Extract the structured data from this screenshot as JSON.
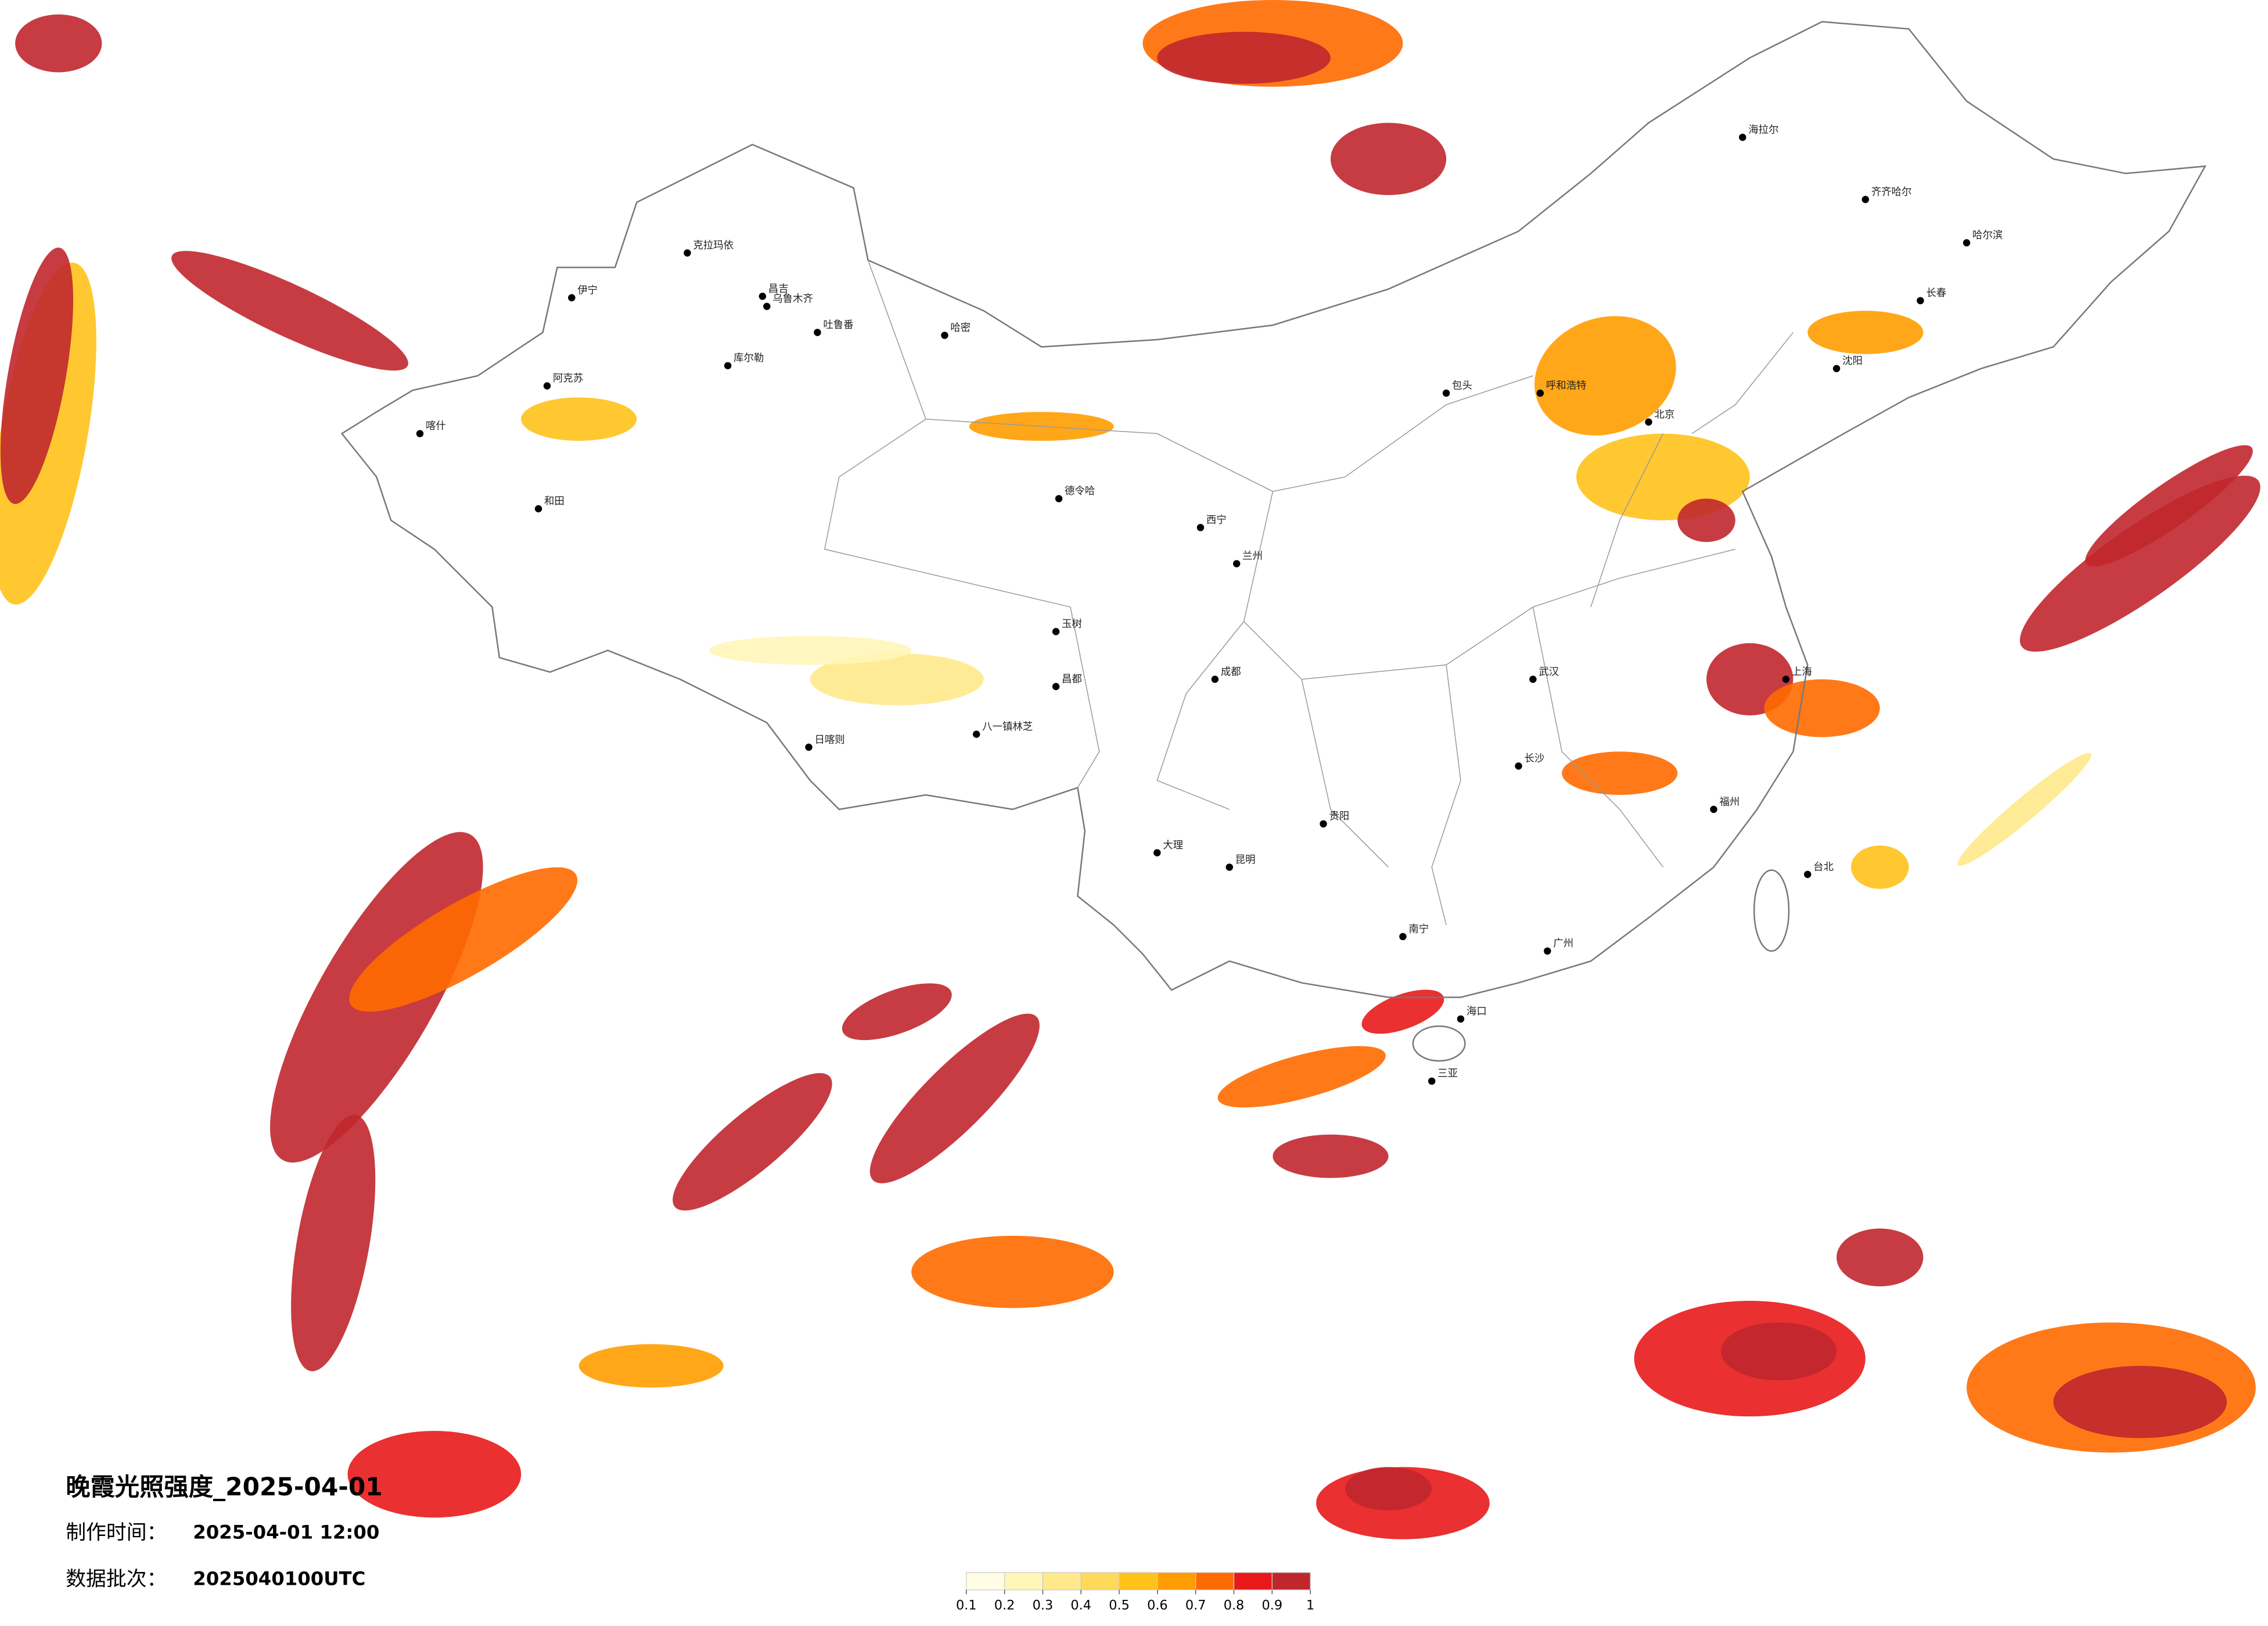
{
  "title": "晚霞光照强度_2025-04-01",
  "info": [
    {
      "label": "制作时间：",
      "value": "2025-04-01 12:00"
    },
    {
      "label": "数据批次：",
      "value": "2025040100UTC"
    }
  ],
  "colorbar": {
    "ticks": [
      0.1,
      0.2,
      0.3,
      0.4,
      0.5,
      0.6,
      0.7,
      0.8,
      0.9,
      1
    ],
    "colors": [
      "#fffde3",
      "#fff6b8",
      "#ffe98a",
      "#ffd95a",
      "#ffc21a",
      "#ff9d00",
      "#ff6a00",
      "#e8191b",
      "#c0272d"
    ]
  },
  "cities": [
    "克拉玛依",
    "昌吉",
    "乌鲁木齐",
    "吐鲁番",
    "哈密",
    "库尔勒",
    "阿克苏",
    "喀什",
    "和田",
    "伊宁",
    "德令哈",
    "昌都",
    "日喀则",
    "八一镇林芝",
    "玉树",
    "北京",
    "哈尔滨",
    "长春",
    "沈阳",
    "上海",
    "广州",
    "海拉尔",
    "齐齐哈尔",
    "呼和浩特",
    "包头",
    "兰州",
    "南宁",
    "海口",
    "三亚",
    "昆明",
    "贵阳",
    "台北",
    "大理",
    "西宁",
    "成都",
    "武汉",
    "长沙",
    "福州"
  ]
}
